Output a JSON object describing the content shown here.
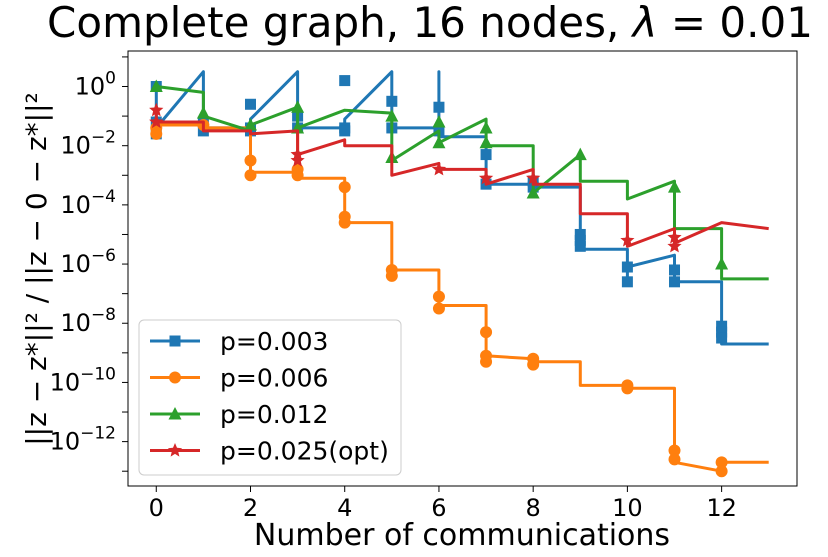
{
  "chart_data": {
    "type": "line",
    "title": "Complete graph, 16 nodes, λ = 0.01",
    "title_parts": {
      "prefix": "Complete graph, 16 nodes, ",
      "symbol": "λ",
      "rest": " = 0.01"
    },
    "xlabel": "Number of communications",
    "ylabel": "||z − z*||² / ||z − 0 − z*||²",
    "yscale": "log",
    "xlim": [
      -0.6,
      13.6
    ],
    "ylim_exp": [
      -13.5,
      1.2
    ],
    "x_ticks": [
      0,
      2,
      4,
      6,
      8,
      10,
      12
    ],
    "y_ticks_exp": [
      0,
      -2,
      -4,
      -6,
      -8,
      -10,
      -12
    ],
    "legend_location": "lower-left",
    "series": [
      {
        "name": "p=0.003",
        "color": "#1f77b4",
        "marker": "square",
        "line_points": [
          [
            0,
            -1.2
          ],
          [
            0,
            0
          ],
          [
            0,
            -1.4
          ],
          [
            1,
            0.5
          ],
          [
            1,
            -1.4
          ],
          [
            2,
            -1.4
          ],
          [
            2,
            -1.6
          ],
          [
            2,
            -1.1
          ],
          [
            3,
            0.5
          ],
          [
            3,
            -1.4
          ],
          [
            4,
            -1.4
          ],
          [
            4,
            -1.5
          ],
          [
            4,
            -1.1
          ],
          [
            5,
            0.5
          ],
          [
            5,
            -1.4
          ],
          [
            6,
            -1.4
          ],
          [
            6,
            -1.6
          ],
          [
            6,
            -1.1
          ],
          [
            6,
            0.5
          ],
          [
            6,
            -1.7
          ],
          [
            7,
            -1.7
          ],
          [
            7,
            -2.3
          ],
          [
            7,
            -3.3
          ],
          [
            8,
            -3.3
          ],
          [
            8,
            -3.4
          ],
          [
            9,
            -3.4
          ],
          [
            9,
            -5.2
          ],
          [
            9,
            -5.5
          ],
          [
            10,
            -5.5
          ],
          [
            10,
            -6.6
          ],
          [
            10,
            -6.1
          ],
          [
            11,
            -5.7
          ],
          [
            11,
            -6.6
          ],
          [
            12,
            -6.6
          ],
          [
            12,
            -8.2
          ],
          [
            12,
            -8.7
          ],
          [
            13,
            -8.7
          ]
        ],
        "markers": [
          [
            0,
            0
          ],
          [
            0,
            -1.2
          ],
          [
            0,
            -1.6
          ],
          [
            1,
            -1.2
          ],
          [
            1,
            -1.5
          ],
          [
            2,
            -0.6
          ],
          [
            2,
            -1.4
          ],
          [
            2,
            -1.5
          ],
          [
            3,
            -1.0
          ],
          [
            3,
            -1.4
          ],
          [
            4,
            0.2
          ],
          [
            4,
            -1.4
          ],
          [
            4,
            -1.5
          ],
          [
            5,
            -0.5
          ],
          [
            5,
            -1.4
          ],
          [
            6,
            -0.7
          ],
          [
            6,
            -1.5
          ],
          [
            7,
            -2.3
          ],
          [
            7,
            -3.3
          ],
          [
            8,
            -3.2
          ],
          [
            8,
            -3.4
          ],
          [
            9,
            -5.0
          ],
          [
            9,
            -5.2
          ],
          [
            9,
            -5.4
          ],
          [
            10,
            -6.1
          ],
          [
            10,
            -6.6
          ],
          [
            11,
            -6.2
          ],
          [
            11,
            -6.6
          ],
          [
            12,
            -8.1
          ],
          [
            12,
            -8.3
          ],
          [
            12,
            -8.5
          ]
        ]
      },
      {
        "name": "p=0.006",
        "color": "#ff7f0e",
        "marker": "circle",
        "line_points": [
          [
            0,
            -1.3
          ],
          [
            0,
            -1.6
          ],
          [
            0,
            -1.3
          ],
          [
            1,
            -1.3
          ],
          [
            1,
            -1.4
          ],
          [
            2,
            -1.4
          ],
          [
            2,
            -2.4
          ],
          [
            2,
            -2.9
          ],
          [
            3,
            -2.9
          ],
          [
            3,
            -1.4
          ],
          [
            3,
            -3.1
          ],
          [
            4,
            -3.1
          ],
          [
            4,
            -3.6
          ],
          [
            4,
            -4.6
          ],
          [
            5,
            -4.6
          ],
          [
            5,
            -6.2
          ],
          [
            6,
            -6.2
          ],
          [
            6,
            -7.4
          ],
          [
            7,
            -7.4
          ],
          [
            7,
            -8.3
          ],
          [
            7,
            -9.1
          ],
          [
            8,
            -9.2
          ],
          [
            8,
            -9.3
          ],
          [
            9,
            -9.3
          ],
          [
            9,
            -10.1
          ],
          [
            10,
            -10.1
          ],
          [
            10,
            -10.2
          ],
          [
            11,
            -10.2
          ],
          [
            11,
            -12.3
          ],
          [
            11,
            -12.7
          ],
          [
            12,
            -13.0
          ],
          [
            12,
            -12.7
          ],
          [
            13,
            -12.7
          ]
        ],
        "markers": [
          [
            0,
            -1.4
          ],
          [
            0,
            -1.6
          ],
          [
            1,
            -1.3
          ],
          [
            2,
            -2.5
          ],
          [
            2,
            -3.0
          ],
          [
            3,
            -2.8
          ],
          [
            3,
            -3.0
          ],
          [
            4,
            -3.4
          ],
          [
            4,
            -4.4
          ],
          [
            4,
            -4.6
          ],
          [
            5,
            -6.2
          ],
          [
            5,
            -6.4
          ],
          [
            6,
            -7.1
          ],
          [
            6,
            -7.5
          ],
          [
            7,
            -8.3
          ],
          [
            7,
            -9.1
          ],
          [
            7,
            -9.3
          ],
          [
            8,
            -9.2
          ],
          [
            8,
            -9.4
          ],
          [
            10,
            -10.1
          ],
          [
            10,
            -10.2
          ],
          [
            11,
            -12.3
          ],
          [
            11,
            -12.6
          ],
          [
            12,
            -12.7
          ],
          [
            12,
            -13.0
          ]
        ]
      },
      {
        "name": "p=0.012",
        "color": "#2ca02c",
        "marker": "triangle",
        "line_points": [
          [
            0,
            0
          ],
          [
            1,
            -0.2
          ],
          [
            1,
            -1.0
          ],
          [
            2,
            -1.5
          ],
          [
            2,
            -1.3
          ],
          [
            3,
            -0.7
          ],
          [
            3,
            -1.4
          ],
          [
            4,
            -0.8
          ],
          [
            5,
            -0.9
          ],
          [
            5,
            -2.5
          ],
          [
            6,
            -1.5
          ],
          [
            6,
            -1.9
          ],
          [
            7,
            -1.1
          ],
          [
            7,
            -2.0
          ],
          [
            8,
            -2.0
          ],
          [
            8,
            -3.6
          ],
          [
            9,
            -2.3
          ],
          [
            9,
            -3.2
          ],
          [
            10,
            -3.2
          ],
          [
            10,
            -3.8
          ],
          [
            11,
            -3.2
          ],
          [
            11,
            -4.8
          ],
          [
            12,
            -4.8
          ],
          [
            12,
            -6.5
          ],
          [
            13,
            -6.5
          ]
        ],
        "markers": [
          [
            0,
            0
          ],
          [
            1,
            -0.9
          ],
          [
            2,
            -1.3
          ],
          [
            3,
            -0.7
          ],
          [
            3,
            -1.4
          ],
          [
            5,
            -1.0
          ],
          [
            5,
            -2.4
          ],
          [
            6,
            -1.2
          ],
          [
            6,
            -1.9
          ],
          [
            7,
            -1.4
          ],
          [
            7,
            -1.9
          ],
          [
            8,
            -3.6
          ],
          [
            9,
            -2.3
          ],
          [
            11,
            -3.4
          ],
          [
            12,
            -6.0
          ]
        ]
      },
      {
        "name": "p=0.025(opt)",
        "color": "#d62728",
        "marker": "star",
        "line_points": [
          [
            0,
            -0.8
          ],
          [
            0,
            -1.2
          ],
          [
            1,
            -1.2
          ],
          [
            1,
            -1.5
          ],
          [
            2,
            -1.5
          ],
          [
            2,
            -1.6
          ],
          [
            3,
            -1.5
          ],
          [
            3,
            -2.3
          ],
          [
            4,
            -1.8
          ],
          [
            4,
            -2.0
          ],
          [
            5,
            -2.0
          ],
          [
            5,
            -3.0
          ],
          [
            6,
            -2.6
          ],
          [
            6,
            -2.8
          ],
          [
            7,
            -2.8
          ],
          [
            7,
            -3.3
          ],
          [
            8,
            -2.8
          ],
          [
            8,
            -3.3
          ],
          [
            9,
            -3.3
          ],
          [
            9,
            -4.3
          ],
          [
            10,
            -4.3
          ],
          [
            10,
            -5.4
          ],
          [
            11,
            -4.8
          ],
          [
            11,
            -5.3
          ],
          [
            12,
            -4.6
          ],
          [
            13,
            -4.8
          ]
        ],
        "markers": [
          [
            0,
            -0.8
          ],
          [
            0,
            -1.2
          ],
          [
            3,
            -2.3
          ],
          [
            3,
            -2.5
          ],
          [
            6,
            -2.8
          ],
          [
            7,
            -3.1
          ],
          [
            8,
            -3.1
          ],
          [
            10,
            -5.2
          ],
          [
            11,
            -5.1
          ],
          [
            11,
            -5.4
          ]
        ]
      }
    ]
  }
}
